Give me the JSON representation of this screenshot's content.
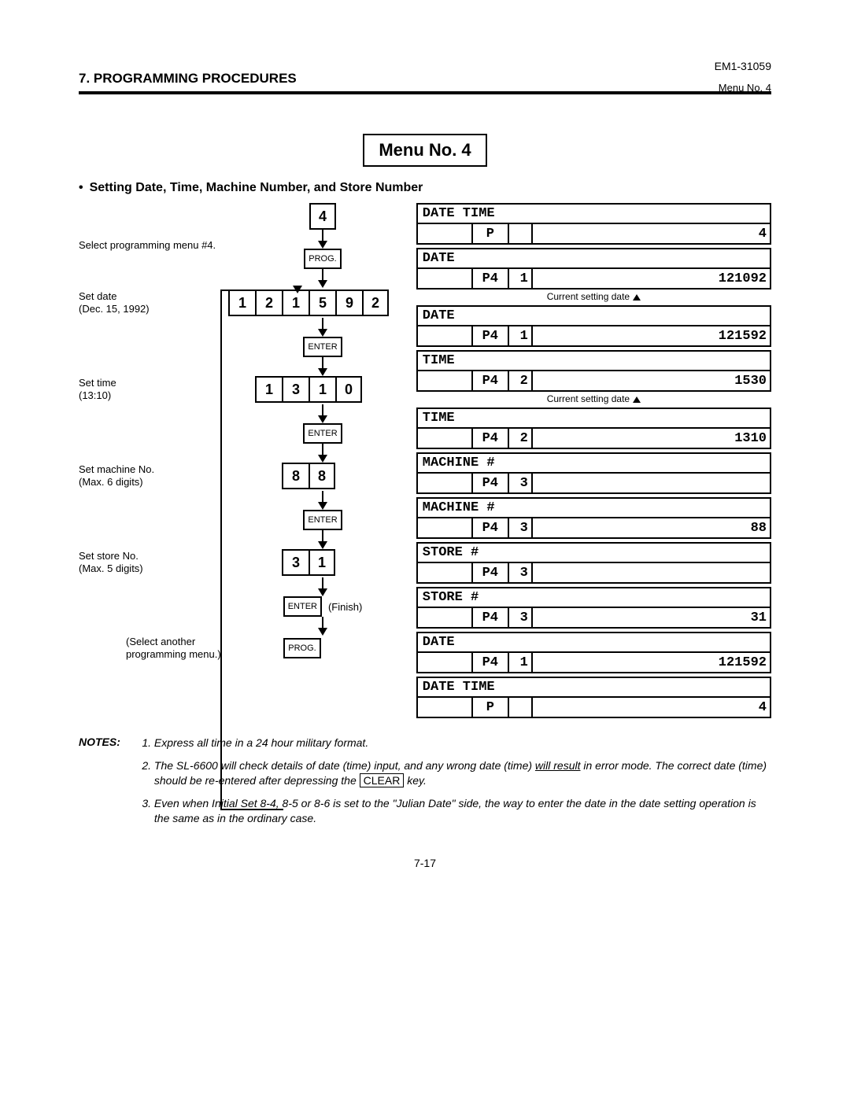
{
  "header": {
    "section": "7. PROGRAMMING PROCEDURES",
    "doc_no": "EM1-31059",
    "menu_ref": "Menu No. 4"
  },
  "title": "Menu No. 4",
  "subtitle": "Setting Date, Time, Machine Number, and Store Number",
  "flow": {
    "step0": "Select programming menu #4.",
    "k4": "4",
    "prog": "PROG.",
    "step1a": "Set date",
    "step1b": "(Dec. 15, 1992)",
    "date_digits": [
      "1",
      "2",
      "1",
      "5",
      "9",
      "2"
    ],
    "enter": "ENTER",
    "step2a": "Set time",
    "step2b": "(13:10)",
    "time_digits": [
      "1",
      "3",
      "1",
      "0"
    ],
    "step3a": "Set machine No.",
    "step3b": "(Max. 6 digits)",
    "mach_digits": [
      "8",
      "8"
    ],
    "step4a": "Set store No.",
    "step4b": "(Max. 5 digits)",
    "store_digits": [
      "3",
      "1"
    ],
    "finish": "(Finish)",
    "loop_note": "(Select another programming menu.)"
  },
  "displays": [
    {
      "label": "DATE TIME",
      "a": "",
      "b": "P",
      "c": "",
      "d": "4"
    },
    {
      "label": "DATE",
      "a": "",
      "b": "P4",
      "c": "1",
      "d": "121092",
      "annot": "Current setting date",
      "arrow": true
    },
    {
      "label": "DATE",
      "a": "",
      "b": "P4",
      "c": "1",
      "d": "121592"
    },
    {
      "label": "TIME",
      "a": "",
      "b": "P4",
      "c": "2",
      "d": "1530",
      "annot": "Current setting date",
      "arrow": true
    },
    {
      "label": "TIME",
      "a": "",
      "b": "P4",
      "c": "2",
      "d": "1310"
    },
    {
      "label": "MACHINE #",
      "a": "",
      "b": "P4",
      "c": "3",
      "d": ""
    },
    {
      "label": "MACHINE #",
      "a": "",
      "b": "P4",
      "c": "3",
      "d": "88"
    },
    {
      "label": "STORE #",
      "a": "",
      "b": "P4",
      "c": "3",
      "d": ""
    },
    {
      "label": "STORE #",
      "a": "",
      "b": "P4",
      "c": "3",
      "d": "31"
    },
    {
      "label": "DATE",
      "a": "",
      "b": "P4",
      "c": "1",
      "d": "121592"
    },
    {
      "label": "DATE TIME",
      "a": "",
      "b": "P",
      "c": "",
      "d": "4"
    }
  ],
  "notes": {
    "heading": "NOTES:",
    "n1": "Express all time in a 24 hour military format.",
    "n2a": "The SL-6600 will check details of date (time) input, and any wrong date (time) ",
    "n2u": "will result",
    "n2b": " in error mode. The correct date (time) should be re-entered after depressing the ",
    "n2key": "CLEAR",
    "n2c": " key.",
    "n3": "Even when Initial Set 8-4, 8-5 or 8-6 is set to the \"Julian Date\" side, the way to enter the date in the date setting operation is the same as in the ordinary case."
  },
  "page_number": "7-17"
}
